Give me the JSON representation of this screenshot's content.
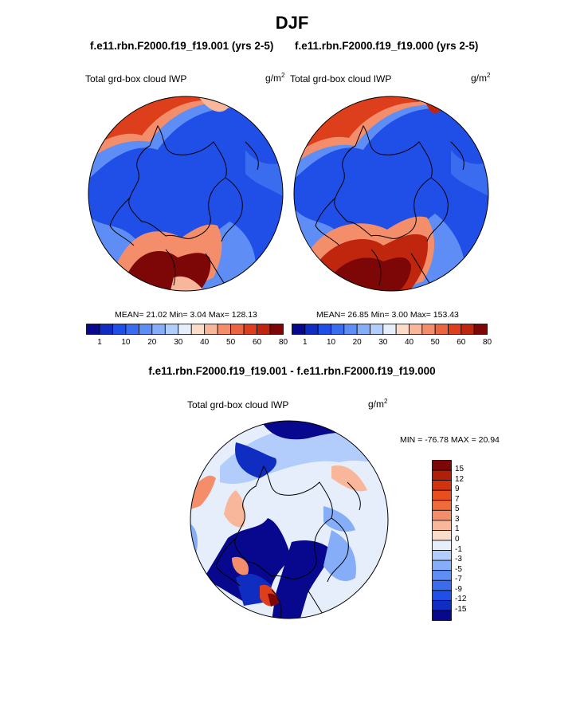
{
  "page": {
    "title": "DJF",
    "diff_title": "f.e11.rbn.F2000.f19_f19.001 - f.e11.rbn.F2000.f19_f19.000"
  },
  "panels": [
    {
      "case_title": "f.e11.rbn.F2000.f19_f19.001 (yrs 2-5)",
      "variable_label": "Total grd-box cloud IWP",
      "units_base": "g/m",
      "units_exp": "2",
      "stats": "MEAN=  21.02  Min=   3.04  Max= 128.13"
    },
    {
      "case_title": "f.e11.rbn.F2000.f19_f19.000 (yrs 2-5)",
      "variable_label": "Total grd-box cloud IWP",
      "units_base": "g/m",
      "units_exp": "2",
      "stats": "MEAN=  26.85  Min=   3.00  Max= 153.43"
    }
  ],
  "diff_panel": {
    "variable_label": "Total grd-box cloud IWP",
    "units_base": "g/m",
    "units_exp": "2",
    "stats": "MIN = -76.78 MAX =  20.94"
  },
  "colorbar_abs": {
    "tick_labels": [
      "1",
      "10",
      "20",
      "30",
      "40",
      "50",
      "60",
      "80"
    ],
    "colors": [
      "#08088e",
      "#0f2dc0",
      "#1f4fe6",
      "#3a6cf0",
      "#5e8ef5",
      "#86aef8",
      "#b2cdfb",
      "#e6eefb",
      "#fbdccb",
      "#f8b79a",
      "#f48e6a",
      "#eb6541",
      "#dd3f1c",
      "#c0250e",
      "#7d0606"
    ]
  },
  "colorbar_diff": {
    "tick_labels": [
      "15",
      "12",
      "9",
      "7",
      "5",
      "3",
      "1",
      "0",
      "-1",
      "-3",
      "-5",
      "-7",
      "-9",
      "-12",
      "-15"
    ],
    "colors": [
      "#7d0606",
      "#b11f09",
      "#d0330d",
      "#e74f1c",
      "#f06a3a",
      "#f48e6a",
      "#f8b79a",
      "#fbdccb",
      "#e6eefb",
      "#b2cdfb",
      "#86aef8",
      "#5e8ef5",
      "#3a6cf0",
      "#1f4fe6",
      "#0f2dc0",
      "#08088e"
    ]
  },
  "chart_data": [
    {
      "type": "heatmap",
      "title": "f.e11.rbn.F2000.f19_f19.001 (yrs 2-5)",
      "variable": "Total grd-box cloud IWP",
      "units": "g/m2",
      "projection": "north polar stereographic",
      "mean": 21.02,
      "min": 3.04,
      "max": 128.13,
      "contour_levels": [
        1,
        5,
        10,
        15,
        20,
        25,
        30,
        35,
        40,
        45,
        50,
        55,
        60,
        70,
        80
      ]
    },
    {
      "type": "heatmap",
      "title": "f.e11.rbn.F2000.f19_f19.000 (yrs 2-5)",
      "variable": "Total grd-box cloud IWP",
      "units": "g/m2",
      "projection": "north polar stereographic",
      "mean": 26.85,
      "min": 3.0,
      "max": 153.43,
      "contour_levels": [
        1,
        5,
        10,
        15,
        20,
        25,
        30,
        35,
        40,
        45,
        50,
        55,
        60,
        70,
        80
      ]
    },
    {
      "type": "heatmap",
      "title": "f.e11.rbn.F2000.f19_f19.001 - f.e11.rbn.F2000.f19_f19.000",
      "variable": "Total grd-box cloud IWP",
      "units": "g/m2",
      "projection": "north polar stereographic",
      "min": -76.78,
      "max": 20.94,
      "contour_levels": [
        -15,
        -12,
        -9,
        -7,
        -5,
        -3,
        -1,
        0,
        1,
        3,
        5,
        7,
        9,
        12,
        15
      ]
    }
  ]
}
